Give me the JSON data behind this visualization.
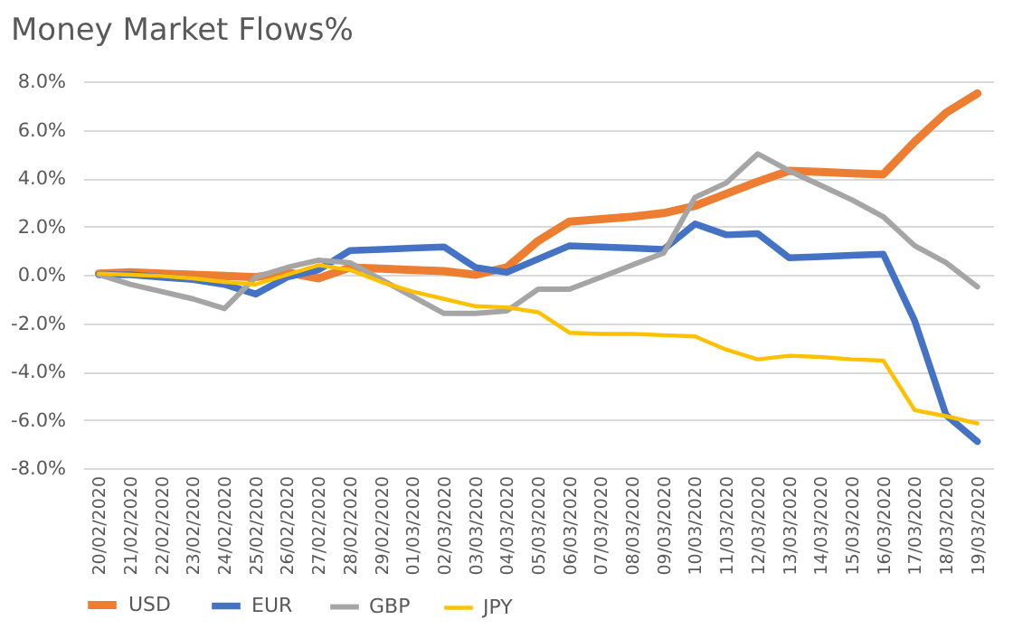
{
  "chart_data": {
    "type": "line",
    "title": "Money Market Flows%",
    "categories": [
      "20/02/2020",
      "21/02/2020",
      "22/02/2020",
      "23/02/2020",
      "24/02/2020",
      "25/02/2020",
      "26/02/2020",
      "27/02/2020",
      "28/02/2020",
      "29/02/2020",
      "01/03/2020",
      "02/03/2020",
      "03/03/2020",
      "04/03/2020",
      "05/03/2020",
      "06/03/2020",
      "07/03/2020",
      "08/03/2020",
      "09/03/2020",
      "10/03/2020",
      "11/03/2020",
      "12/03/2020",
      "13/03/2020",
      "14/03/2020",
      "15/03/2020",
      "16/03/2020",
      "17/03/2020",
      "18/03/2020",
      "19/03/2020"
    ],
    "series": [
      {
        "name": "USD",
        "color": "#ed7d31",
        "values": [
          0.05,
          0.1,
          0.05,
          0,
          -0.05,
          -0.1,
          0.1,
          -0.15,
          0.3,
          0.25,
          0.2,
          0.15,
          0,
          0.3,
          1.4,
          2.2,
          2.3,
          2.4,
          2.55,
          2.85,
          3.35,
          3.85,
          4.3,
          4.25,
          4.2,
          4.15,
          5.5,
          6.7,
          7.5
        ]
      },
      {
        "name": "EUR",
        "color": "#4472c4",
        "values": [
          0,
          0,
          -0.1,
          -0.2,
          -0.4,
          -0.8,
          -0.1,
          0.2,
          1,
          1.05,
          1.1,
          1.15,
          0.3,
          0.1,
          0.65,
          1.2,
          1.15,
          1.1,
          1.05,
          2.1,
          1.65,
          1.7,
          0.7,
          0.75,
          0.8,
          0.85,
          -1.9,
          -5.8,
          -6.9
        ]
      },
      {
        "name": "GBP",
        "color": "#a5a5a5",
        "values": [
          0,
          -0.4,
          -0.7,
          -1,
          -1.4,
          -0.1,
          0.3,
          0.6,
          0.5,
          -0.2,
          -0.9,
          -1.6,
          -1.6,
          -1.5,
          -0.6,
          -0.6,
          -0.1,
          0.4,
          0.9,
          3.2,
          3.8,
          5,
          4.3,
          3.7,
          3.1,
          2.4,
          1.2,
          0.5,
          -0.5
        ]
      },
      {
        "name": "JPY",
        "color": "#ffc000",
        "values": [
          0.05,
          0,
          -0.05,
          -0.15,
          -0.3,
          -0.4,
          0,
          0.4,
          0.2,
          -0.3,
          -0.7,
          -1,
          -1.3,
          -1.35,
          -1.55,
          -2.4,
          -2.45,
          -2.45,
          -2.5,
          -2.55,
          -3.1,
          -3.5,
          -3.35,
          -3.4,
          -3.5,
          -3.55,
          -5.6,
          -5.85,
          -6.15
        ]
      }
    ],
    "ylim": [
      -8,
      8
    ],
    "yticks": [
      {
        "value": -8,
        "label": "-8.0%"
      },
      {
        "value": -6,
        "label": "-6.0%"
      },
      {
        "value": -4,
        "label": "-4.0%"
      },
      {
        "value": -2,
        "label": "-2.0%"
      },
      {
        "value": 0,
        "label": "0.0%"
      },
      {
        "value": 2,
        "label": "2.0%"
      },
      {
        "value": 4,
        "label": "4.0%"
      },
      {
        "value": 6,
        "label": "6.0%"
      },
      {
        "value": 8,
        "label": "8.0%"
      }
    ],
    "grid": "y",
    "legend": "bottom",
    "marker": "none",
    "line_style": "solid"
  }
}
